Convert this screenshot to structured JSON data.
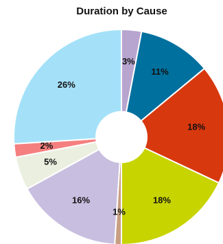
{
  "chart_data": {
    "type": "pie",
    "title": "Duration by Cause",
    "donut_hole": true,
    "slices": [
      {
        "label": "3%",
        "value": 3,
        "color": "#b7a5cf"
      },
      {
        "label": "11%",
        "value": 11,
        "color": "#00709e"
      },
      {
        "label": "18%",
        "value": 18,
        "color": "#d8380e"
      },
      {
        "label": "18%",
        "value": 18,
        "color": "#c8d400"
      },
      {
        "label": "1%",
        "value": 1,
        "color": "#c89f83"
      },
      {
        "label": "16%",
        "value": 16,
        "color": "#c8bedf"
      },
      {
        "label": "5%",
        "value": 5,
        "color": "#ebefe0"
      },
      {
        "label": "2%",
        "value": 2,
        "color": "#f57f7f"
      },
      {
        "label": "26%",
        "value": 26,
        "color": "#a4e1f9"
      }
    ]
  }
}
